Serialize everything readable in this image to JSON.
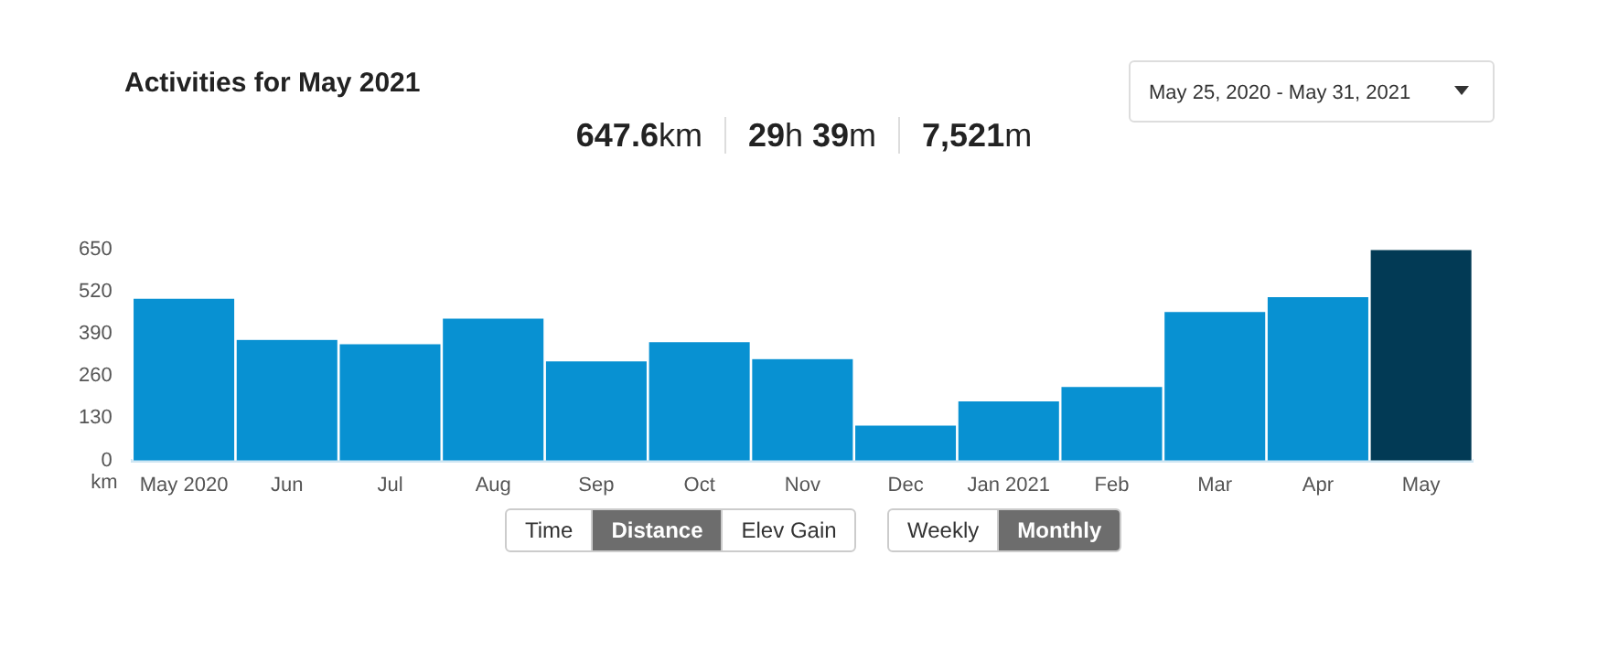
{
  "chart_data": {
    "type": "bar",
    "title": "Activities for May 2021",
    "ylabel": "km",
    "categories": [
      "May 2020",
      "Jun",
      "Jul",
      "Aug",
      "Sep",
      "Oct",
      "Nov",
      "Dec",
      "Jan 2021",
      "Feb",
      "Mar",
      "Apr",
      "May"
    ],
    "values": [
      498,
      371,
      358,
      437,
      305,
      364,
      312,
      107,
      182,
      226,
      457,
      503,
      648
    ],
    "colors": [
      "#0891d2",
      "#0891d2",
      "#0891d2",
      "#0891d2",
      "#0891d2",
      "#0891d2",
      "#0891d2",
      "#0891d2",
      "#0891d2",
      "#0891d2",
      "#0891d2",
      "#0891d2",
      "#023a55"
    ],
    "ylim": [
      0,
      660
    ],
    "yticks": [
      0,
      130,
      260,
      390,
      520,
      650
    ],
    "grid": false,
    "legend": false,
    "annotations": [
      "647.6km",
      "29h 39m",
      "7,521m",
      "May 25, 2020 - May 31, 2021",
      "Time",
      "Distance",
      "Elev Gain",
      "Weekly",
      "Monthly"
    ]
  }
}
